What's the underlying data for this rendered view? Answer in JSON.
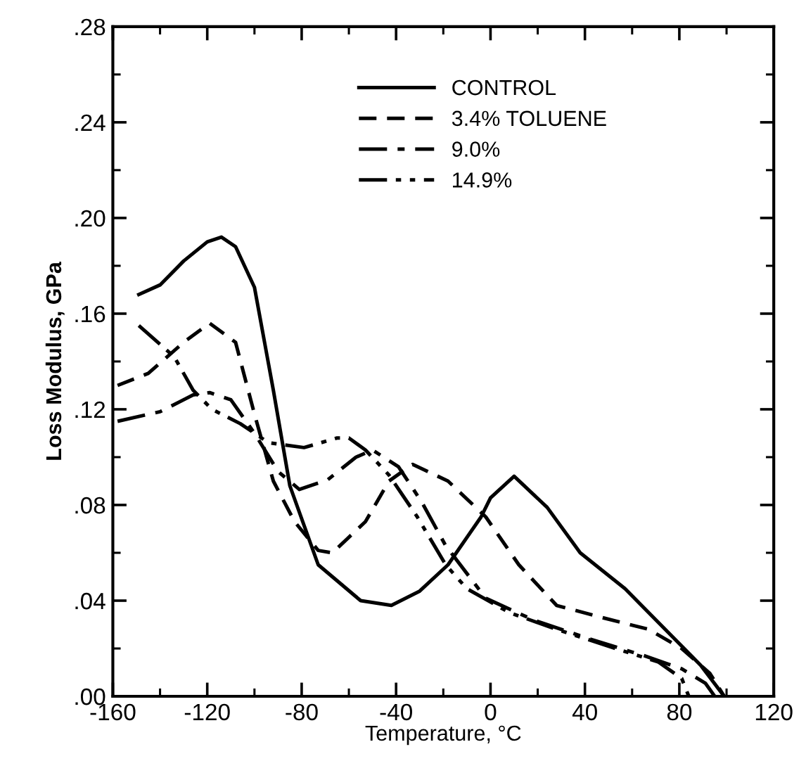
{
  "chart_data": {
    "type": "line",
    "xlabel": "Temperature, °C",
    "ylabel": "Loss Modulus, GPa",
    "xlim": [
      -160,
      120
    ],
    "xticks": [
      -160,
      -120,
      -80,
      -40,
      0,
      40,
      80,
      120
    ],
    "ylim": [
      0,
      0.28
    ],
    "yticks": [
      {
        "value": 0,
        "label": ".00"
      },
      {
        "value": 0.04,
        "label": ".04"
      },
      {
        "value": 0.08,
        "label": ".08"
      },
      {
        "value": 0.12,
        "label": ".12"
      },
      {
        "value": 0.16,
        "label": ".16"
      },
      {
        "value": 0.2,
        "label": ".20"
      },
      {
        "value": 0.24,
        "label": ".24"
      },
      {
        "value": 0.28,
        "label": ".28"
      }
    ],
    "grid": false,
    "legend": "top",
    "marker": "none",
    "series": [
      {
        "name": "CONTROL",
        "color": "#000000",
        "line_style": "solid",
        "x": [
          -149,
          -140,
          -130,
          -120,
          -114,
          -108,
          -100,
          -92,
          -85,
          -73,
          -55,
          -42,
          -30,
          -18,
          -4,
          0,
          10,
          24,
          38,
          57,
          77,
          89,
          99
        ],
        "values": [
          0.168,
          0.172,
          0.182,
          0.19,
          0.192,
          0.188,
          0.171,
          0.128,
          0.088,
          0.055,
          0.04,
          0.038,
          0.044,
          0.055,
          0.075,
          0.083,
          0.092,
          0.079,
          0.06,
          0.045,
          0.025,
          0.013,
          0
        ]
      },
      {
        "name": "3.4% TOLUENE",
        "color": "#000000",
        "line_style": "dashed",
        "x": [
          -158,
          -145,
          -130,
          -119,
          -108,
          -100,
          -92,
          -83,
          -73,
          -67,
          -53,
          -43,
          -33,
          -18,
          -2,
          12,
          28,
          47,
          67,
          81,
          93,
          99
        ],
        "values": [
          0.13,
          0.135,
          0.148,
          0.156,
          0.148,
          0.118,
          0.09,
          0.073,
          0.061,
          0.06,
          0.073,
          0.09,
          0.097,
          0.09,
          0.075,
          0.055,
          0.038,
          0.033,
          0.028,
          0.02,
          0.0095,
          0
        ]
      },
      {
        "name": "9.0%",
        "color": "#000000",
        "line_style": "dashdot",
        "x": [
          -158,
          -140,
          -126,
          -119,
          -110,
          -100,
          -90,
          -81,
          -69,
          -57,
          -50,
          -39,
          -29,
          -19,
          -2,
          18,
          42,
          65,
          81,
          91,
          95
        ],
        "values": [
          0.115,
          0.119,
          0.126,
          0.127,
          0.124,
          0.11,
          0.094,
          0.0865,
          0.0905,
          0.1,
          0.103,
          0.096,
          0.081,
          0.063,
          0.041,
          0.032,
          0.024,
          0.017,
          0.0115,
          0.0055,
          0
        ]
      },
      {
        "name": "14.9%",
        "color": "#000000",
        "line_style": "dashdotdot",
        "x": [
          -149,
          -134,
          -126,
          -118,
          -106,
          -94,
          -79,
          -65,
          -60,
          -53,
          -43,
          -31,
          -19,
          -10,
          8,
          28,
          53,
          71,
          81,
          84
        ],
        "values": [
          0.155,
          0.142,
          0.128,
          0.12,
          0.114,
          0.106,
          0.104,
          0.108,
          0.108,
          0.103,
          0.0925,
          0.075,
          0.055,
          0.045,
          0.035,
          0.028,
          0.02,
          0.0144,
          0.0075,
          0
        ]
      }
    ]
  }
}
